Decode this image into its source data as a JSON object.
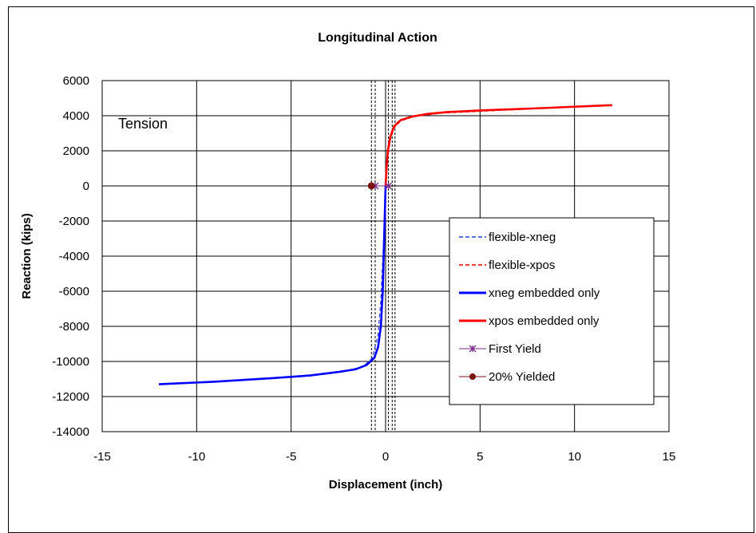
{
  "chart_data": {
    "type": "line",
    "title": "Longitudinal Action",
    "xlabel": "Displacement (inch)",
    "ylabel": "Reaction (kips)",
    "xlim": [
      -15,
      15
    ],
    "ylim": [
      -14000,
      6000
    ],
    "xticks": [
      -15,
      -10,
      -5,
      0,
      5,
      10,
      15
    ],
    "yticks": [
      6000,
      4000,
      2000,
      0,
      -2000,
      -4000,
      -6000,
      -8000,
      -10000,
      -12000,
      -14000
    ],
    "xtick_labels": [
      "-15",
      "-10",
      "-5",
      "0",
      "5",
      "10",
      "15"
    ],
    "ytick_labels": [
      "6000",
      "4000",
      "2000",
      "0",
      "-2000",
      "-4000",
      "-6000",
      "-8000",
      "-10000",
      "-12000",
      "-14000"
    ],
    "grid": true,
    "legend_position": "right",
    "annotation": "Tension",
    "series": [
      {
        "name": "flexible-xneg",
        "color": "#1f3fd8",
        "dash": "dashed",
        "x": [
          0,
          -0.1,
          -0.25,
          -0.4,
          -0.7,
          -1.2,
          -2,
          -3,
          -5,
          -8,
          -12
        ],
        "y": [
          0,
          -3000,
          -6500,
          -8500,
          -9800,
          -10300,
          -10500,
          -10700,
          -10900,
          -11100,
          -11300
        ]
      },
      {
        "name": "flexible-xpos",
        "color": "#e00000",
        "dash": "dashed",
        "x": [
          0,
          0.1,
          0.25,
          0.45,
          0.8,
          1.5,
          3,
          6,
          9,
          12
        ],
        "y": [
          0,
          1500,
          2600,
          3300,
          3700,
          3950,
          4150,
          4300,
          4450,
          4600
        ]
      },
      {
        "name": "xneg embedded only",
        "color": "#0000ff",
        "dash": "solid",
        "x": [
          0,
          -0.05,
          -0.1,
          -0.15,
          -0.25,
          -0.4,
          -0.6,
          -1,
          -1.6,
          -2.5,
          -4,
          -6,
          -9,
          -12
        ],
        "y": [
          0,
          -2000,
          -4000,
          -6000,
          -8000,
          -9200,
          -9800,
          -10200,
          -10450,
          -10600,
          -10800,
          -10950,
          -11150,
          -11300
        ]
      },
      {
        "name": "xpos embedded only",
        "color": "#ff0000",
        "dash": "solid",
        "x": [
          0,
          0.05,
          0.12,
          0.25,
          0.45,
          0.8,
          1.4,
          2.2,
          3.2,
          5,
          8,
          12
        ],
        "y": [
          0,
          1000,
          2000,
          2800,
          3400,
          3750,
          3950,
          4100,
          4200,
          4300,
          4420,
          4600
        ]
      },
      {
        "name": "First Yield",
        "color": "#7a2a8a",
        "marker": "star",
        "x": [
          -0.55,
          0.15
        ],
        "y": [
          0,
          0
        ]
      },
      {
        "name": "20% Yielded",
        "color": "#7a1010",
        "marker": "circle",
        "x": [
          -0.75
        ],
        "y": [
          0
        ]
      }
    ],
    "vlines": [
      -0.75,
      -0.55,
      0,
      0.15,
      0.35,
      0.5
    ]
  }
}
